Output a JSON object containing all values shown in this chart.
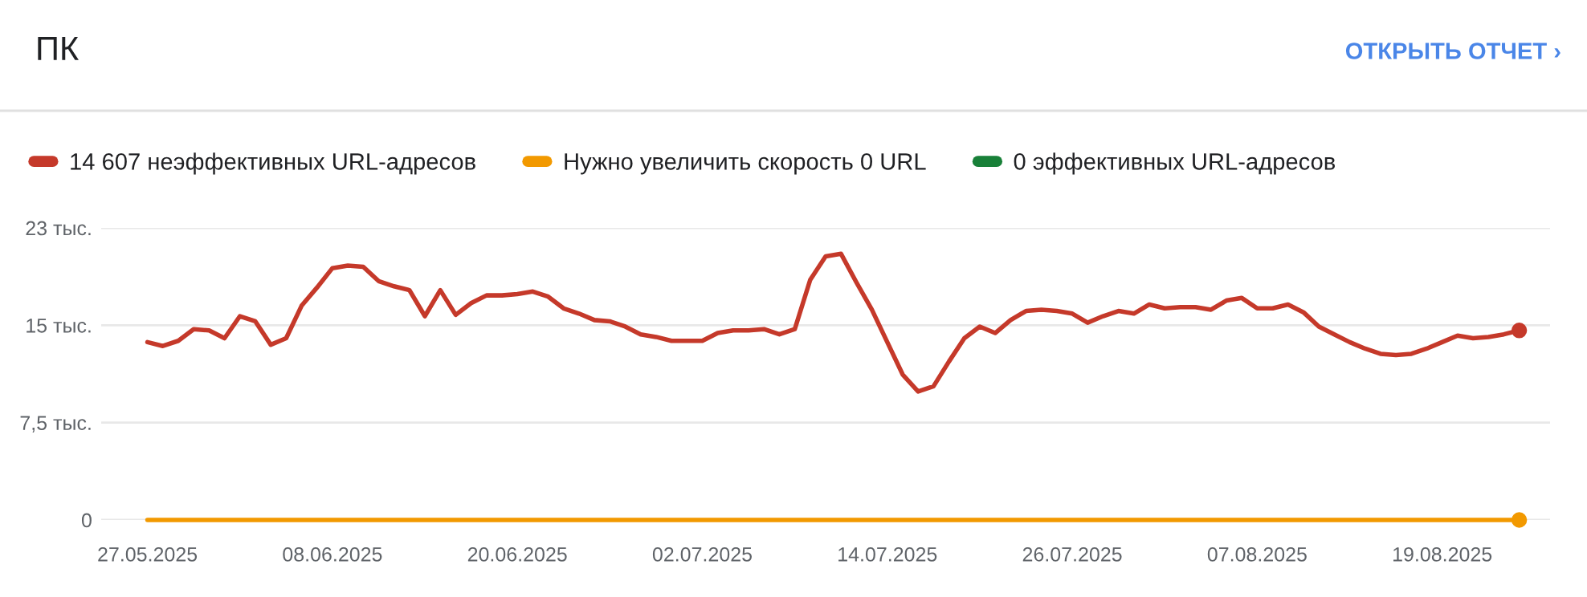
{
  "chart_data": {
    "type": "line",
    "title": "ПК",
    "annotations": [
      "ОТКРЫТЬ ОТЧЕТ ›"
    ],
    "x": [
      "2025-05-27",
      "2025-05-28",
      "2025-05-29",
      "2025-05-30",
      "2025-05-31",
      "2025-06-01",
      "2025-06-02",
      "2025-06-03",
      "2025-06-04",
      "2025-06-05",
      "2025-06-06",
      "2025-06-07",
      "2025-06-08",
      "2025-06-09",
      "2025-06-10",
      "2025-06-11",
      "2025-06-12",
      "2025-06-13",
      "2025-06-14",
      "2025-06-15",
      "2025-06-16",
      "2025-06-17",
      "2025-06-18",
      "2025-06-19",
      "2025-06-20",
      "2025-06-21",
      "2025-06-22",
      "2025-06-23",
      "2025-06-24",
      "2025-06-25",
      "2025-06-26",
      "2025-06-27",
      "2025-06-28",
      "2025-06-29",
      "2025-06-30",
      "2025-07-01",
      "2025-07-02",
      "2025-07-03",
      "2025-07-04",
      "2025-07-05",
      "2025-07-06",
      "2025-07-07",
      "2025-07-08",
      "2025-07-09",
      "2025-07-10",
      "2025-07-11",
      "2025-07-12",
      "2025-07-13",
      "2025-07-14",
      "2025-07-15",
      "2025-07-16",
      "2025-07-17",
      "2025-07-18",
      "2025-07-19",
      "2025-07-20",
      "2025-07-21",
      "2025-07-22",
      "2025-07-23",
      "2025-07-24",
      "2025-07-25",
      "2025-07-26",
      "2025-07-27",
      "2025-07-28",
      "2025-07-29",
      "2025-07-30",
      "2025-07-31",
      "2025-08-01",
      "2025-08-02",
      "2025-08-03",
      "2025-08-04",
      "2025-08-05",
      "2025-08-06",
      "2025-08-07",
      "2025-08-08",
      "2025-08-09",
      "2025-08-10",
      "2025-08-11",
      "2025-08-12",
      "2025-08-13",
      "2025-08-14",
      "2025-08-15",
      "2025-08-16",
      "2025-08-17",
      "2025-08-18",
      "2025-08-19",
      "2025-08-20",
      "2025-08-21",
      "2025-08-22",
      "2025-08-23",
      "2025-08-24"
    ],
    "series": [
      {
        "name": "14 607 неэффективных URL-адресов",
        "color": "#c5392a",
        "values": [
          13.7,
          13.4,
          13.8,
          14.7,
          14.6,
          14.0,
          15.7,
          15.3,
          13.5,
          14.0,
          16.5,
          17.9,
          19.4,
          19.6,
          19.5,
          18.4,
          18.0,
          17.7,
          15.7,
          17.7,
          15.8,
          16.7,
          17.3,
          17.3,
          17.4,
          17.6,
          17.2,
          16.3,
          15.9,
          15.4,
          15.3,
          14.9,
          14.3,
          14.1,
          13.8,
          13.8,
          13.8,
          14.4,
          14.6,
          14.6,
          14.7,
          14.3,
          14.7,
          18.5,
          20.3,
          20.5,
          18.3,
          16.2,
          13.7,
          11.2,
          9.9,
          10.3,
          12.2,
          14.0,
          14.9,
          14.4,
          15.4,
          16.1,
          16.2,
          16.1,
          15.9,
          15.2,
          15.7,
          16.1,
          15.9,
          16.6,
          16.3,
          16.4,
          16.4,
          16.2,
          16.9,
          17.1,
          16.3,
          16.3,
          16.6,
          16.0,
          14.9,
          14.3,
          13.7,
          13.2,
          12.8,
          12.7,
          12.8,
          13.2,
          13.7,
          14.2,
          14.0,
          14.1,
          14.3,
          14.6
        ]
      },
      {
        "name": "Нужно увеличить скорость 0 URL",
        "color": "#f29900",
        "values": [
          0,
          0,
          0,
          0,
          0,
          0,
          0,
          0,
          0,
          0,
          0,
          0,
          0,
          0,
          0,
          0,
          0,
          0,
          0,
          0,
          0,
          0,
          0,
          0,
          0,
          0,
          0,
          0,
          0,
          0,
          0,
          0,
          0,
          0,
          0,
          0,
          0,
          0,
          0,
          0,
          0,
          0,
          0,
          0,
          0,
          0,
          0,
          0,
          0,
          0,
          0,
          0,
          0,
          0,
          0,
          0,
          0,
          0,
          0,
          0,
          0,
          0,
          0,
          0,
          0,
          0,
          0,
          0,
          0,
          0,
          0,
          0,
          0,
          0,
          0,
          0,
          0,
          0,
          0,
          0,
          0,
          0,
          0,
          0,
          0,
          0,
          0,
          0,
          0,
          0
        ]
      },
      {
        "name": "0 эффективных URL-адресов",
        "color": "#188038",
        "values": [
          null,
          null,
          null,
          null,
          null,
          null,
          null,
          null,
          null,
          null,
          null,
          null,
          null,
          null,
          null,
          null,
          null,
          null,
          null,
          null,
          null,
          null,
          null,
          null,
          null,
          null,
          null,
          null,
          null,
          null,
          null,
          null,
          null,
          null,
          null,
          null,
          null,
          null,
          null,
          null,
          null,
          null,
          null,
          null,
          null,
          null,
          null,
          null,
          null,
          null,
          null,
          null,
          null,
          null,
          null,
          null,
          null,
          null,
          null,
          null,
          null,
          null,
          null,
          null,
          null,
          null,
          null,
          null,
          null,
          null,
          null,
          null,
          null,
          null,
          null,
          null,
          null,
          null,
          null,
          null,
          null,
          null,
          null,
          null,
          null,
          null,
          null,
          null,
          null,
          null
        ]
      }
    ],
    "xlim": [
      "2025-05-24",
      "2025-08-26"
    ],
    "xticks": [
      {
        "value": "2025-05-27",
        "label": "27.05.2025"
      },
      {
        "value": "2025-06-08",
        "label": "08.06.2025"
      },
      {
        "value": "2025-06-20",
        "label": "20.06.2025"
      },
      {
        "value": "2025-07-02",
        "label": "02.07.2025"
      },
      {
        "value": "2025-07-14",
        "label": "14.07.2025"
      },
      {
        "value": "2025-07-26",
        "label": "26.07.2025"
      },
      {
        "value": "2025-08-07",
        "label": "07.08.2025"
      },
      {
        "value": "2025-08-19",
        "label": "19.08.2025"
      }
    ],
    "ylim": [
      0,
      22.5
    ],
    "yticks": [
      0,
      {
        "value": 7.5,
        "label": "7,5 тыс."
      },
      {
        "value": 15,
        "label": "15 тыс."
      },
      {
        "value": 22.5,
        "label": "23 тыс."
      }
    ],
    "grid": "y",
    "legend": "top left"
  }
}
